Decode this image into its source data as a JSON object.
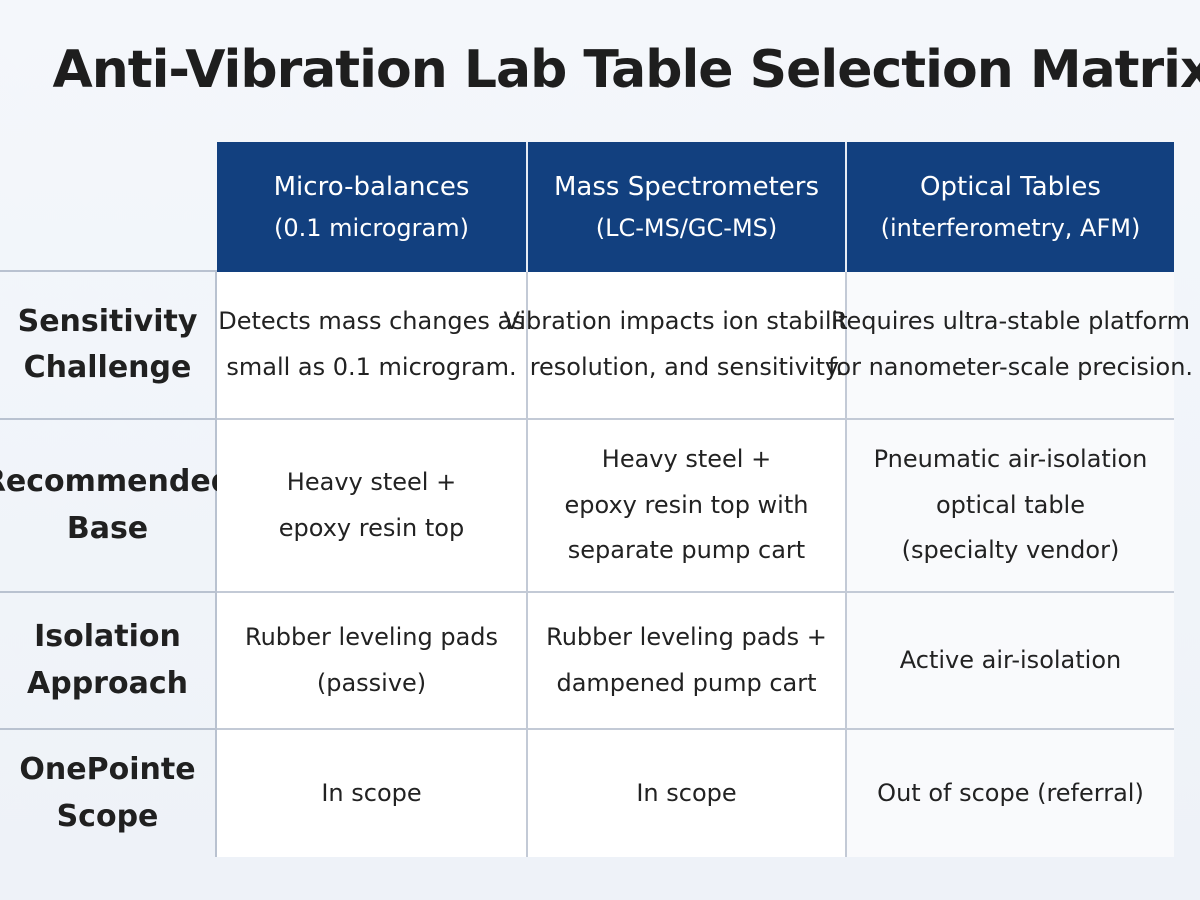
{
  "title": "Anti-Vibration Lab Table Selection Matrix",
  "columns": [
    {
      "name": "Micro-balances",
      "sub": "(0.1 microgram)"
    },
    {
      "name": "Mass Spectrometers",
      "sub": "(LC-MS/GC-MS)"
    },
    {
      "name": "Optical Tables",
      "sub": "(interferometry, AFM)"
    }
  ],
  "rows": [
    {
      "label": [
        "Sensitivity",
        "Challenge"
      ],
      "cells": [
        [
          "Detects mass changes as",
          "small as 0.1 microgram."
        ],
        [
          "Vibration impacts ion stability,",
          "resolution, and sensitivity."
        ],
        [
          "Requires ultra-stable platform",
          "for nanometer-scale precision."
        ]
      ]
    },
    {
      "label": [
        "Recommended",
        "Base"
      ],
      "cells": [
        [
          "Heavy steel +",
          "epoxy resin top"
        ],
        [
          "Heavy steel +",
          "epoxy resin top with",
          "separate pump cart"
        ],
        [
          "Pneumatic air-isolation",
          "optical table",
          "(specialty vendor)"
        ]
      ]
    },
    {
      "label": [
        "Isolation",
        "Approach"
      ],
      "cells": [
        [
          "Rubber leveling pads",
          "(passive)"
        ],
        [
          "Rubber leveling pads +",
          "dampened pump cart"
        ],
        [
          "Active air-isolation"
        ]
      ]
    },
    {
      "label": [
        "OnePointe",
        "Scope"
      ],
      "cells": [
        [
          "In scope"
        ],
        [
          "In scope"
        ],
        [
          "Out of scope (referral)"
        ]
      ]
    }
  ]
}
